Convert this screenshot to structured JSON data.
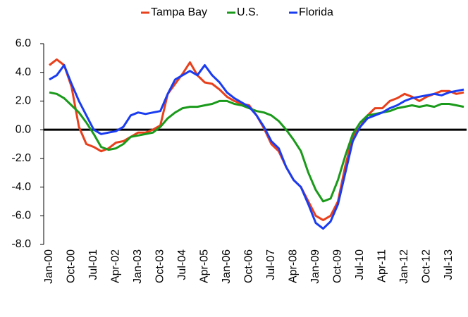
{
  "chart_data": {
    "type": "line",
    "categories": [
      "Jan-00",
      null,
      null,
      "Oct-00",
      null,
      null,
      "Jul-01",
      null,
      null,
      "Apr-02",
      null,
      null,
      "Jan-03",
      null,
      null,
      "Oct-03",
      null,
      null,
      "Jul-04",
      null,
      null,
      "Apr-05",
      null,
      null,
      "Jan-06",
      null,
      null,
      "Oct-06",
      null,
      null,
      "Jul-07",
      null,
      null,
      "Apr-08",
      null,
      null,
      "Jan-09",
      null,
      null,
      "Oct-09",
      null,
      null,
      "Jul-10",
      null,
      null,
      "Apr-11",
      null,
      null,
      "Jan-12",
      null,
      null,
      "Oct-12",
      null,
      null,
      "Jul-13",
      null,
      null
    ],
    "series": [
      {
        "name": "Tampa Bay",
        "color": "#e8401c",
        "values": [
          4.5,
          4.9,
          4.5,
          3.0,
          0.2,
          -1.0,
          -1.2,
          -1.5,
          -1.3,
          -0.9,
          -0.8,
          -0.5,
          -0.2,
          -0.2,
          0.0,
          0.3,
          2.5,
          3.2,
          3.9,
          4.7,
          3.8,
          3.3,
          3.2,
          2.8,
          2.3,
          2.0,
          1.8,
          1.7,
          1.0,
          0.1,
          -1.0,
          -1.5,
          -2.6,
          -3.5,
          -4.0,
          -5.0,
          -6.0,
          -6.3,
          -6.0,
          -5.0,
          -2.5,
          -0.5,
          0.2,
          1.0,
          1.5,
          1.5,
          2.0,
          2.2,
          2.5,
          2.3,
          2.0,
          2.3,
          2.5,
          2.7,
          2.7,
          2.5,
          2.6
        ]
      },
      {
        "name": "U.S.",
        "color": "#1a9a1a",
        "values": [
          2.6,
          2.5,
          2.2,
          1.7,
          1.2,
          0.5,
          -0.3,
          -1.2,
          -1.4,
          -1.3,
          -1.0,
          -0.5,
          -0.4,
          -0.3,
          -0.2,
          0.2,
          0.8,
          1.2,
          1.5,
          1.6,
          1.6,
          1.7,
          1.8,
          2.0,
          2.0,
          1.8,
          1.7,
          1.5,
          1.3,
          1.2,
          1.0,
          0.6,
          0.0,
          -0.7,
          -1.5,
          -3.0,
          -4.2,
          -5.0,
          -4.8,
          -3.5,
          -1.8,
          -0.3,
          0.5,
          1.0,
          1.1,
          1.2,
          1.3,
          1.5,
          1.6,
          1.7,
          1.6,
          1.7,
          1.6,
          1.8,
          1.8,
          1.7,
          1.6
        ]
      },
      {
        "name": "Florida",
        "color": "#1a3cf0",
        "values": [
          3.5,
          3.8,
          4.5,
          3.2,
          2.0,
          1.0,
          0.0,
          -0.3,
          -0.2,
          -0.1,
          0.2,
          1.0,
          1.2,
          1.1,
          1.2,
          1.3,
          2.5,
          3.5,
          3.8,
          4.1,
          3.8,
          4.5,
          3.8,
          3.3,
          2.6,
          2.2,
          1.9,
          1.6,
          1.0,
          0.2,
          -0.8,
          -1.3,
          -2.6,
          -3.5,
          -4.0,
          -5.2,
          -6.5,
          -6.9,
          -6.4,
          -5.2,
          -3.0,
          -0.8,
          0.2,
          0.8,
          1.0,
          1.2,
          1.5,
          1.7,
          2.0,
          2.2,
          2.3,
          2.4,
          2.5,
          2.4,
          2.6,
          2.7,
          2.8
        ]
      }
    ],
    "ylim": [
      -8,
      6
    ],
    "yticks": [
      {
        "value": -8,
        "label": "-8.0"
      },
      {
        "value": -6,
        "label": "-6.0"
      },
      {
        "value": -4,
        "label": "-4.0"
      },
      {
        "value": -2,
        "label": "-2.0"
      },
      {
        "value": 0,
        "label": "0.0"
      },
      {
        "value": 2,
        "label": "2.0"
      },
      {
        "value": 4,
        "label": "4.0"
      },
      {
        "value": 6,
        "label": "6.0"
      }
    ],
    "zero_line": true,
    "grid": false,
    "legend": "top"
  }
}
